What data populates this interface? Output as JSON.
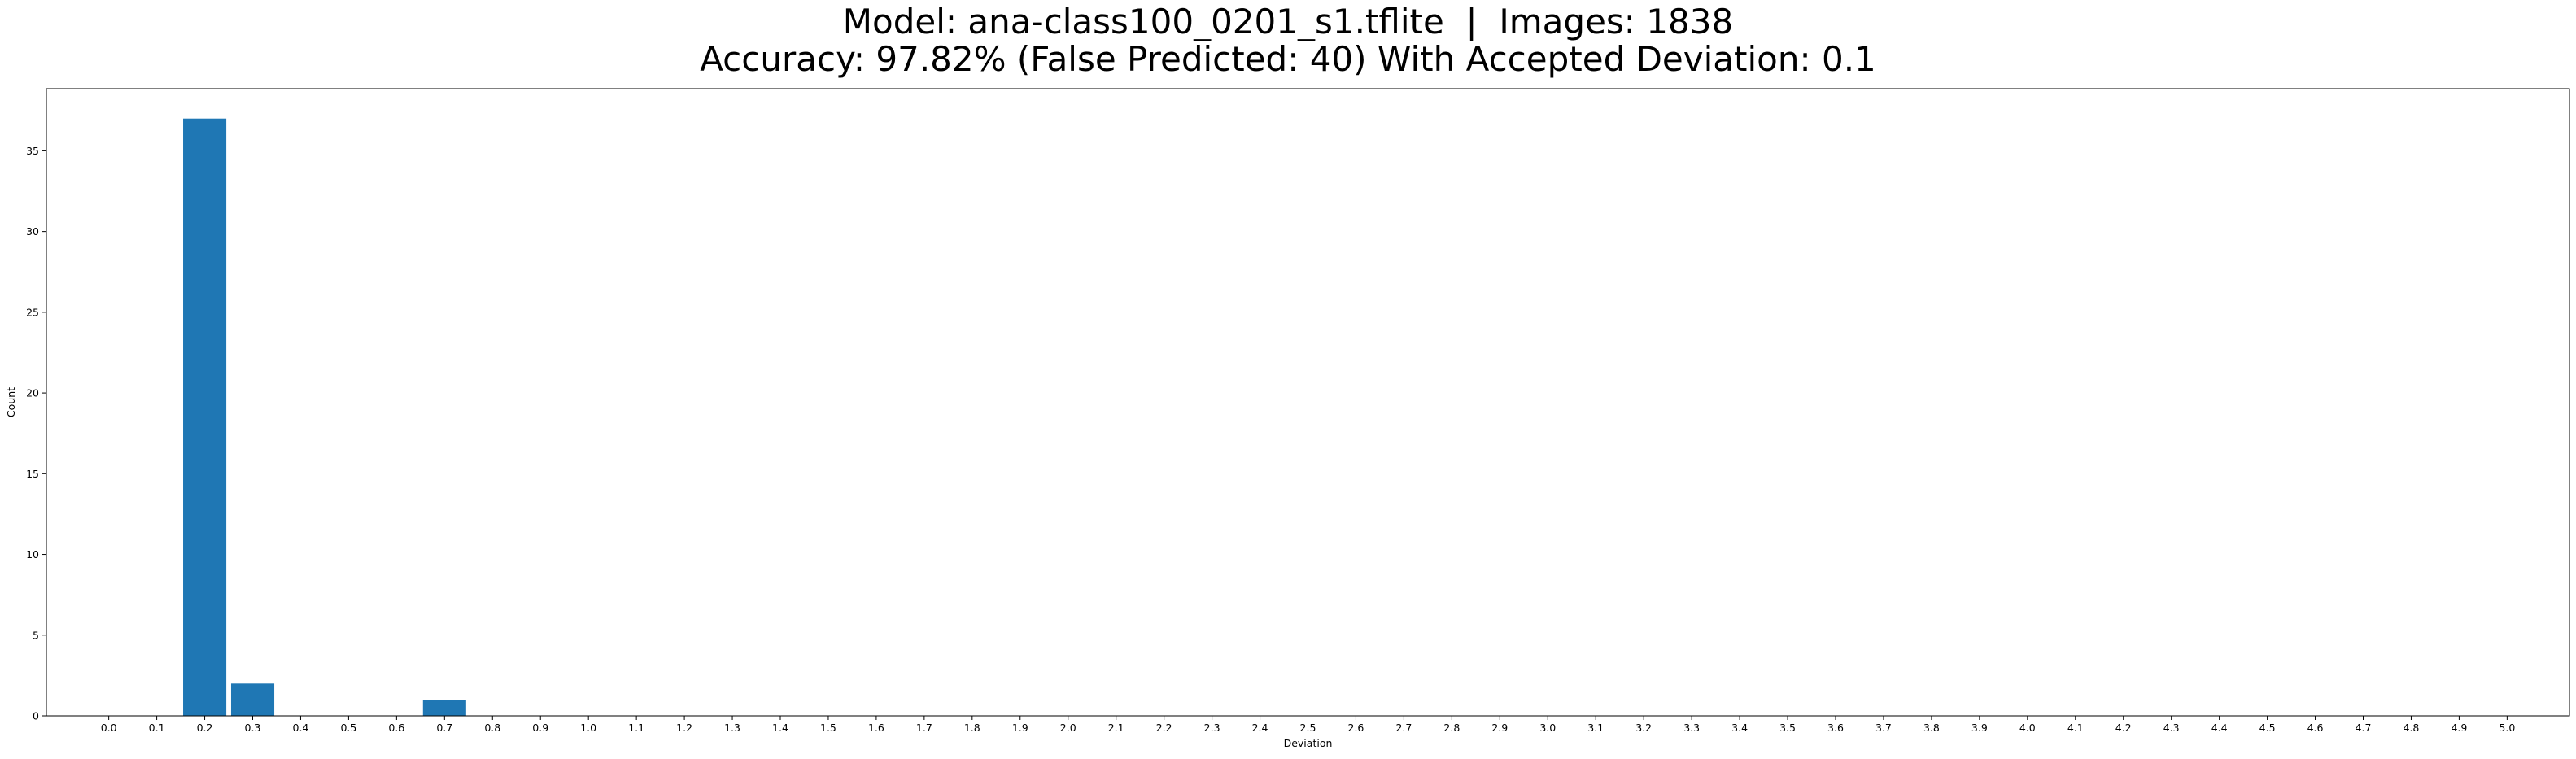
{
  "chart_data": {
    "type": "bar",
    "title_line1": "Model: ana-class100_0201_s1.tflite  |  Images: 1838",
    "title_line2": "Accuracy: 97.82% (False Predicted: 40) With Accepted Deviation: 0.1",
    "xlabel": "Deviation",
    "ylabel": "Count",
    "categories": [
      "0.0",
      "0.1",
      "0.2",
      "0.3",
      "0.4",
      "0.5",
      "0.6",
      "0.7",
      "0.8",
      "0.9",
      "1.0",
      "1.1",
      "1.2",
      "1.3",
      "1.4",
      "1.5",
      "1.6",
      "1.7",
      "1.8",
      "1.9",
      "2.0",
      "2.1",
      "2.2",
      "2.3",
      "2.4",
      "2.5",
      "2.6",
      "2.7",
      "2.8",
      "2.9",
      "3.0",
      "3.1",
      "3.2",
      "3.3",
      "3.4",
      "3.5",
      "3.6",
      "3.7",
      "3.8",
      "3.9",
      "4.0",
      "4.1",
      "4.2",
      "4.3",
      "4.4",
      "4.5",
      "4.6",
      "4.7",
      "4.8",
      "4.9",
      "5.0"
    ],
    "values": [
      0,
      0,
      37,
      2,
      0,
      0,
      0,
      1,
      0,
      0,
      0,
      0,
      0,
      0,
      0,
      0,
      0,
      0,
      0,
      0,
      0,
      0,
      0,
      0,
      0,
      0,
      0,
      0,
      0,
      0,
      0,
      0,
      0,
      0,
      0,
      0,
      0,
      0,
      0,
      0,
      0,
      0,
      0,
      0,
      0,
      0,
      0,
      0,
      0,
      0,
      0
    ],
    "yticks": [
      0,
      5,
      10,
      15,
      20,
      25,
      30,
      35
    ],
    "ylim": [
      0,
      38.85
    ],
    "bar_color": "#1f77b4",
    "grid": false,
    "legend": "none"
  }
}
